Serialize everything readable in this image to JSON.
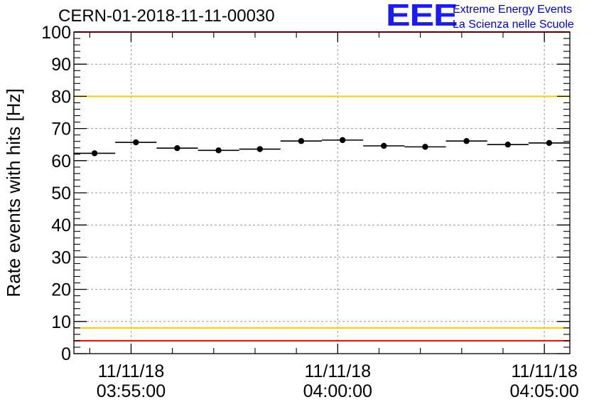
{
  "header": {
    "run_title": "CERN-01-2018-11-11-00030",
    "logo_mark": "EEE",
    "logo_line1": "Extreme Energy Events",
    "logo_line2": "La Scienza nelle Scuole"
  },
  "colors": {
    "data": "#000000",
    "red_threshold": "#ff0000",
    "yellow_threshold": "#ffcc00",
    "grid": "#999999",
    "logo": "#1a1aff"
  },
  "chart_data": {
    "type": "scatter",
    "title": "",
    "ylabel": "Rate events with hits [Hz]",
    "xlabel": "",
    "ylim": [
      0,
      100
    ],
    "xlim": [
      "03:53:37",
      "04:05:37"
    ],
    "yticks": [
      0,
      10,
      20,
      30,
      40,
      50,
      60,
      70,
      80,
      90,
      100
    ],
    "xticks": [
      {
        "time": "03:55:00",
        "date": "11/11/18",
        "label": "03:55:00"
      },
      {
        "time": "04:00:00",
        "date": "11/11/18",
        "label": "04:00:00"
      },
      {
        "time": "04:05:00",
        "date": "11/11/18",
        "label": "04:05:00"
      }
    ],
    "grid": true,
    "series": [
      {
        "x": [
          "03:54:07",
          "03:55:07",
          "03:56:07",
          "03:57:07",
          "03:58:07",
          "03:59:07",
          "04:00:07",
          "04:01:07",
          "04:02:07",
          "04:03:07",
          "04:04:07",
          "04:05:07"
        ],
        "y": [
          62.3,
          65.7,
          63.9,
          63.2,
          63.6,
          66.1,
          66.4,
          64.6,
          64.3,
          66.1,
          65.0,
          65.5
        ],
        "x_bin_width_seconds": 60,
        "y_error": 0.6
      }
    ],
    "reference_lines": [
      {
        "y": 4,
        "color": "red"
      },
      {
        "y": 8,
        "color": "yellow"
      },
      {
        "y": 80,
        "color": "yellow"
      },
      {
        "y": 100,
        "color": "red"
      }
    ]
  }
}
